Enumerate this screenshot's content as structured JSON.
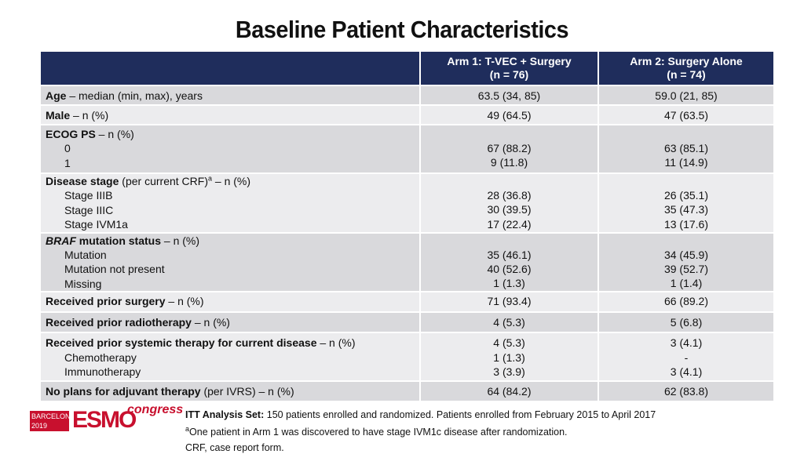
{
  "title": "Baseline Patient Characteristics",
  "header": {
    "col1": "",
    "arm1_line1": "Arm 1: T-VEC + Surgery",
    "arm1_line2": "(n = 76)",
    "arm2_line1": "Arm 2: Surgery Alone",
    "arm2_line2": "(n = 74)"
  },
  "rows": {
    "age": {
      "bold": "Age",
      "rest": " – median (min, max), years",
      "arm1": "63.5 (34, 85)",
      "arm2": "59.0 (21, 85)"
    },
    "male": {
      "bold": "Male",
      "rest": " – n (%)",
      "arm1": "49 (64.5)",
      "arm2": "47 (63.5)"
    },
    "ecog": {
      "bold": "ECOG PS",
      "rest": " – n (%)",
      "sub": [
        "0",
        "1"
      ],
      "arm1": [
        "67 (88.2)",
        "9 (11.8)"
      ],
      "arm2": [
        "63 (85.1)",
        "11 (14.9)"
      ]
    },
    "stage": {
      "bold": "Disease stage",
      "rest1": " (per current CRF)",
      "sup": "a",
      "rest2": " – n (%)",
      "sub": [
        "Stage IIIB",
        "Stage IIIC",
        "Stage IVM1a"
      ],
      "arm1": [
        "28 (36.8)",
        "30 (39.5)",
        "17 (22.4)"
      ],
      "arm2": [
        "26 (35.1)",
        "35 (47.3)",
        "13 (17.6)"
      ]
    },
    "braf": {
      "italic": "BRAF",
      "bold": " mutation status",
      "rest": " – n (%)",
      "sub": [
        "Mutation",
        "Mutation not present",
        "Missing"
      ],
      "arm1": [
        "35 (46.1)",
        "40 (52.6)",
        "1 (1.3)"
      ],
      "arm2": [
        "34 (45.9)",
        "39 (52.7)",
        "1 (1.4)"
      ]
    },
    "surgery": {
      "bold": "Received prior surgery",
      "rest": " – n (%)",
      "arm1": "71 (93.4)",
      "arm2": "66 (89.2)"
    },
    "radio": {
      "bold": "Received prior radiotherapy",
      "rest": " – n (%)",
      "arm1": "4 (5.3)",
      "arm2": "5 (6.8)"
    },
    "systemic": {
      "bold": "Received prior systemic therapy for current disease",
      "rest": " – n (%)",
      "sub": [
        "Chemotherapy",
        "Immunotherapy"
      ],
      "arm1": [
        "4 (5.3)",
        "1 (1.3)",
        "3 (3.9)"
      ],
      "arm2": [
        "3 (4.1)",
        "-",
        "3 (4.1)"
      ]
    },
    "adjuvant": {
      "bold": "No plans for adjuvant therapy",
      "rest": " (per IVRS) – n (%)",
      "arm1": "64 (84.2)",
      "arm2": "62 (83.8)"
    }
  },
  "logo": {
    "city_line1": "BARCELONA",
    "city_line2": "2019",
    "brand": "ESMO",
    "tag": "congress"
  },
  "footnotes": {
    "itt_bold": "ITT Analysis Set:",
    "itt_rest": " 150 patients enrolled and randomized. Patients enrolled from February 2015 to April 2017",
    "note_sup": "a",
    "note_text": "One patient in Arm 1 was discovered to have stage IVM1c disease after randomization.",
    "crf": "CRF, case report form."
  }
}
